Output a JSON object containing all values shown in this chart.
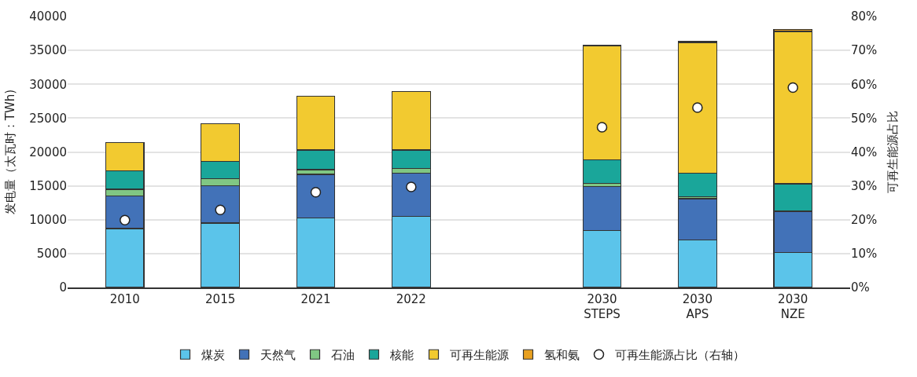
{
  "chart_data": {
    "type": "bar",
    "stacked": true,
    "ylabel": "发电量（太瓦时：TWh)",
    "y2label": "可再生能源占比",
    "categories": [
      "2010",
      "2015",
      "2021",
      "2022",
      null,
      "2030\nSTEPS",
      "2030\nAPS",
      "2030\nNZE"
    ],
    "series": [
      {
        "name": "煤炭",
        "color": "#5bc4ea",
        "values": [
          8700,
          9500,
          10300,
          10500,
          null,
          8400,
          7000,
          5200
        ]
      },
      {
        "name": "天然气",
        "color": "#4272b8",
        "values": [
          4800,
          5500,
          6400,
          6400,
          null,
          6500,
          6100,
          6000
        ]
      },
      {
        "name": "石油",
        "color": "#80c783",
        "values": [
          1000,
          1100,
          700,
          700,
          null,
          500,
          300,
          100
        ]
      },
      {
        "name": "核能",
        "color": "#1aa69a",
        "values": [
          2700,
          2500,
          2900,
          2700,
          null,
          3400,
          3500,
          4000
        ]
      },
      {
        "name": "可再生能源",
        "color": "#f2ca30",
        "values": [
          4200,
          5600,
          7900,
          8600,
          null,
          16900,
          19200,
          22500
        ]
      },
      {
        "name": "氢和氨",
        "color": "#e8a020",
        "values": [
          null,
          null,
          null,
          null,
          null,
          100,
          200,
          300
        ]
      },
      {
        "name": "可再生能源占比（右轴）",
        "type": "scatter",
        "axis": "y2",
        "marker": "circle",
        "color": "#ffffff",
        "values": [
          19.9,
          22.9,
          28.1,
          29.7,
          null,
          47.3,
          53.1,
          59.0
        ]
      }
    ],
    "ylim": [
      0,
      40000
    ],
    "yticks": [
      0,
      5000,
      10000,
      15000,
      20000,
      25000,
      30000,
      35000,
      40000
    ],
    "y2lim": [
      0,
      80
    ],
    "y2ticks": [
      {
        "value": 0,
        "label": "0%"
      },
      {
        "value": 10,
        "label": "10%"
      },
      {
        "value": 20,
        "label": "20%"
      },
      {
        "value": 30,
        "label": "30%"
      },
      {
        "value": 40,
        "label": "40%"
      },
      {
        "value": 50,
        "label": "50%"
      },
      {
        "value": 60,
        "label": "60%"
      },
      {
        "value": 70,
        "label": "70%"
      },
      {
        "value": 80,
        "label": "80%"
      }
    ],
    "grid": "y",
    "legend": "bottom"
  }
}
